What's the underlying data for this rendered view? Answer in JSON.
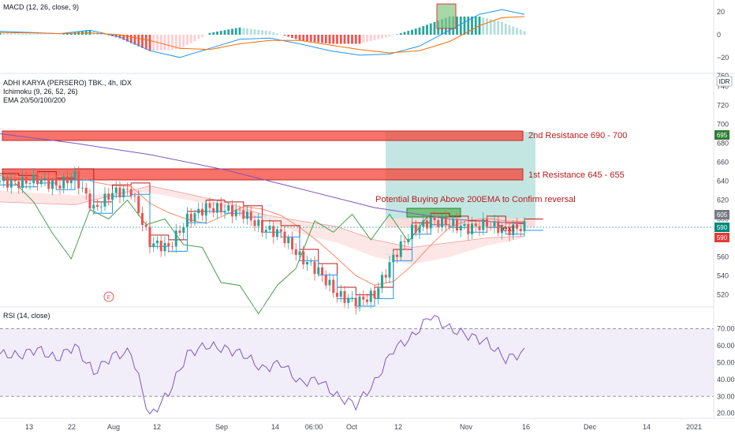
{
  "macd_pane": {
    "label": "MACD (12, 26, close, 9)",
    "y_ticks": [
      "20",
      "0",
      "−20"
    ],
    "ylim": [
      -25,
      25
    ]
  },
  "price_pane": {
    "title": "ADHI KARYA (PERSERO) TBK., 4h, IDX",
    "indicator1": "Ichimoku (9, 26, 52, 26)",
    "indicator2": "EMA 20/50/100/200",
    "currency": "IDR",
    "y_ticks": [
      "740",
      "720",
      "700",
      "680",
      "660",
      "640",
      "620",
      "600",
      "580",
      "560",
      "540",
      "520"
    ],
    "top_tick_partial": "760",
    "ylim": [
      508,
      752
    ],
    "price_badges": [
      {
        "value": "695",
        "color": "#2e7d32"
      },
      {
        "value": "605",
        "color": "#787b86"
      },
      {
        "value": "590",
        "color": "#00897b"
      },
      {
        "value": "590",
        "color": "#e53935"
      }
    ],
    "event_marker": "E"
  },
  "annotations": {
    "resistance2": "2nd Resistance 690 - 700",
    "resistance1": "1st Resistance 645 - 655",
    "buying": "Potential Buying Above 200EMA to Confirm reversal",
    "text": "Text"
  },
  "rsi_pane": {
    "label": "RSI (14, close)",
    "y_ticks": [
      "70.00",
      "60.00",
      "50.00",
      "40.00",
      "30.00",
      "20.00"
    ],
    "ylim": [
      18,
      80
    ],
    "band": [
      30,
      70
    ]
  },
  "time_axis": {
    "labels": [
      "13",
      "22",
      "Aug",
      "12",
      "Sep",
      "14",
      "06:00",
      "Oct",
      "12",
      "Nov",
      "16",
      "Dec",
      "14",
      "2021"
    ]
  },
  "colors": {
    "bull": "#26a69a",
    "bear": "#ef5350",
    "macd_line": "#2196f3",
    "signal_line": "#ff6d00",
    "rsi_line": "#7e57c2",
    "ema200": "#7e57c2",
    "tenkan": "#2196f3",
    "kijun": "#b71c1c",
    "chikou": "#43a047",
    "resistance_zone": "#f44336",
    "target_zone": "#26a69a"
  },
  "chart_data": [
    {
      "type": "line",
      "title": "MACD (12, 26, close, 9)",
      "series": [
        {
          "name": "MACD",
          "x": [
            0,
            8,
            16,
            24,
            32,
            40,
            48,
            56,
            64,
            72,
            80,
            88,
            96,
            104,
            112,
            120,
            128,
            134,
            140
          ],
          "values": [
            3,
            2,
            1,
            4,
            -2,
            -14,
            -20,
            -12,
            -4,
            -3,
            -8,
            -14,
            -18,
            -17,
            -10,
            4,
            18,
            22,
            18
          ]
        },
        {
          "name": "Signal",
          "x": [
            0,
            8,
            16,
            24,
            32,
            40,
            48,
            56,
            64,
            72,
            80,
            88,
            96,
            104,
            112,
            120,
            128,
            134,
            140
          ],
          "values": [
            2,
            1.5,
            1,
            1.5,
            0,
            -5,
            -12,
            -13,
            -8,
            -5,
            -5,
            -9,
            -13,
            -16,
            -14,
            -6,
            8,
            15,
            16
          ]
        }
      ]
    },
    {
      "type": "line",
      "title": "ADHI KARYA (PERSERO) TBK., 4h, IDX",
      "ylim": [
        508,
        752
      ],
      "series": [
        {
          "name": "Close",
          "x": [
            0,
            5,
            10,
            15,
            20,
            25,
            30,
            35,
            40,
            45,
            50,
            55,
            60,
            65,
            70,
            75,
            80,
            85,
            90,
            95,
            100,
            105,
            110,
            115,
            120,
            125,
            130,
            135,
            140
          ],
          "values": [
            640,
            638,
            642,
            635,
            645,
            610,
            628,
            630,
            575,
            570,
            600,
            612,
            610,
            606,
            590,
            585,
            560,
            545,
            520,
            512,
            520,
            560,
            588,
            598,
            595,
            590,
            595,
            588,
            592
          ]
        },
        {
          "name": "EMA 200",
          "x": [
            0,
            20,
            40,
            60,
            80,
            100,
            120,
            140
          ],
          "values": [
            690,
            680,
            668,
            652,
            632,
            612,
            600,
            595
          ]
        }
      ]
    },
    {
      "type": "line",
      "title": "RSI (14, close)",
      "ylim": [
        18,
        80
      ],
      "series": [
        {
          "name": "RSI",
          "x": [
            0,
            5,
            10,
            15,
            20,
            25,
            30,
            35,
            40,
            45,
            50,
            55,
            60,
            65,
            70,
            75,
            80,
            85,
            90,
            95,
            100,
            105,
            110,
            115,
            120,
            125,
            130,
            135,
            140
          ],
          "values": [
            55,
            54,
            58,
            52,
            60,
            44,
            54,
            56,
            18,
            32,
            55,
            60,
            58,
            55,
            46,
            50,
            38,
            40,
            30,
            25,
            38,
            58,
            65,
            78,
            70,
            66,
            62,
            52,
            56
          ]
        }
      ]
    }
  ]
}
